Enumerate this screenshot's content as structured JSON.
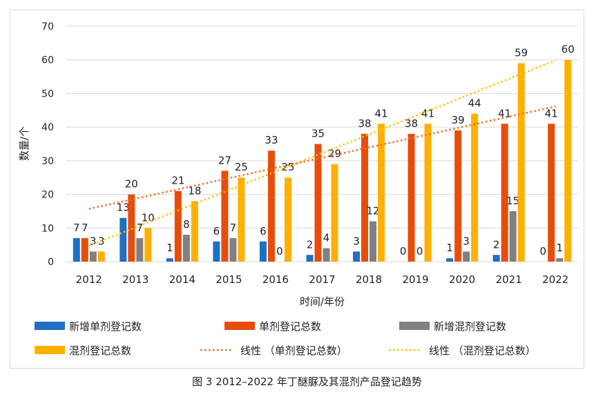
{
  "chart_data": {
    "type": "bar",
    "categories": [
      "2012",
      "2013",
      "2014",
      "2015",
      "2016",
      "2017",
      "2018",
      "2019",
      "2020",
      "2021",
      "2022"
    ],
    "series": [
      {
        "name": "新增单剂登记数",
        "color": "#1f6fc5",
        "values": [
          7,
          13,
          1,
          6,
          6,
          2,
          3,
          0,
          1,
          2,
          0
        ]
      },
      {
        "name": "单剂登记总数",
        "color": "#e84c0a",
        "values": [
          7,
          20,
          21,
          27,
          33,
          35,
          38,
          38,
          39,
          41,
          41
        ]
      },
      {
        "name": "新增混剂登记数",
        "color": "#808080",
        "values": [
          3,
          7,
          8,
          7,
          0,
          4,
          12,
          0,
          3,
          15,
          1
        ]
      },
      {
        "name": "混剂登记总数",
        "color": "#ffb000",
        "values": [
          3,
          10,
          18,
          25,
          25,
          29,
          41,
          41,
          44,
          59,
          60
        ]
      }
    ],
    "trendlines": [
      {
        "name": "线性 （单剂登记总数）",
        "of_series": 1,
        "type": "linear",
        "color": "#f06a2a"
      },
      {
        "name": "线性 （混剂登记总数）",
        "of_series": 3,
        "type": "linear",
        "color": "#ffc000"
      }
    ],
    "xlabel": "时间/年份",
    "ylabel": "数量/个",
    "ylim": [
      0,
      70
    ],
    "yticks": [
      0,
      10,
      20,
      30,
      40,
      50,
      60,
      70
    ],
    "grid": true,
    "legend": "bottom"
  },
  "caption": "图 3  2012–2022 年丁醚脲及其混剂产品登记趋势"
}
